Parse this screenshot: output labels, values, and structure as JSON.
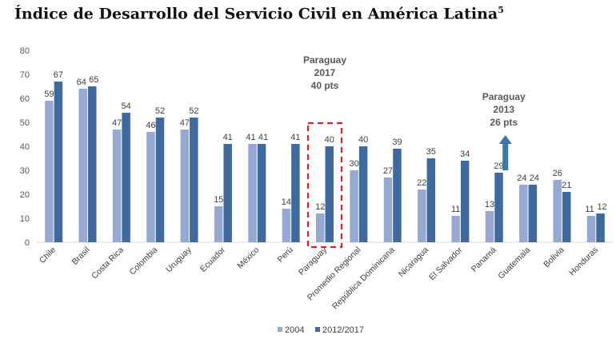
{
  "title": {
    "text": "Índice de Desarrollo del Servicio Civil en América Latina",
    "footnote": "5"
  },
  "chart_data": {
    "type": "bar",
    "title": "Índice de Desarrollo del Servicio Civil en América Latina",
    "xlabel": "",
    "ylabel": "",
    "ylim": [
      0,
      80
    ],
    "yticks": [
      0,
      10,
      20,
      30,
      40,
      50,
      60,
      70,
      80
    ],
    "grid": false,
    "legend_position": "bottom",
    "categories": [
      "Chile",
      "Brasil",
      "Costa Rica",
      "Colombia",
      "Uruguay",
      "Ecuador",
      "México",
      "Perú",
      "Paraguay",
      "Promedio Regional",
      "República Dominicana",
      "Nicaragua",
      "El Salvador",
      "Panamá",
      "Guatemala",
      "Bolivia",
      "Honduras"
    ],
    "series": [
      {
        "name": "2004",
        "color": "#95a9d3",
        "values": [
          59,
          64,
          47,
          46,
          47,
          15,
          41,
          14,
          12,
          30,
          27,
          22,
          11,
          13,
          24,
          26,
          11
        ]
      },
      {
        "name": "2012/2017",
        "color": "#3f6aa0",
        "values": [
          67,
          65,
          54,
          52,
          52,
          41,
          41,
          41,
          40,
          40,
          39,
          35,
          34,
          29,
          24,
          21,
          12
        ]
      }
    ],
    "annotations": [
      {
        "lines": [
          "Paraguay",
          "2017",
          "40 pts"
        ],
        "target_category": "Paraguay",
        "style": "dashed-red-box"
      },
      {
        "lines": [
          "Paraguay",
          "2013",
          "26 pts"
        ],
        "target_category": "Panamá",
        "style": "up-arrow",
        "arrow_color": "#3a78ac",
        "arrow_value": 26
      }
    ]
  }
}
